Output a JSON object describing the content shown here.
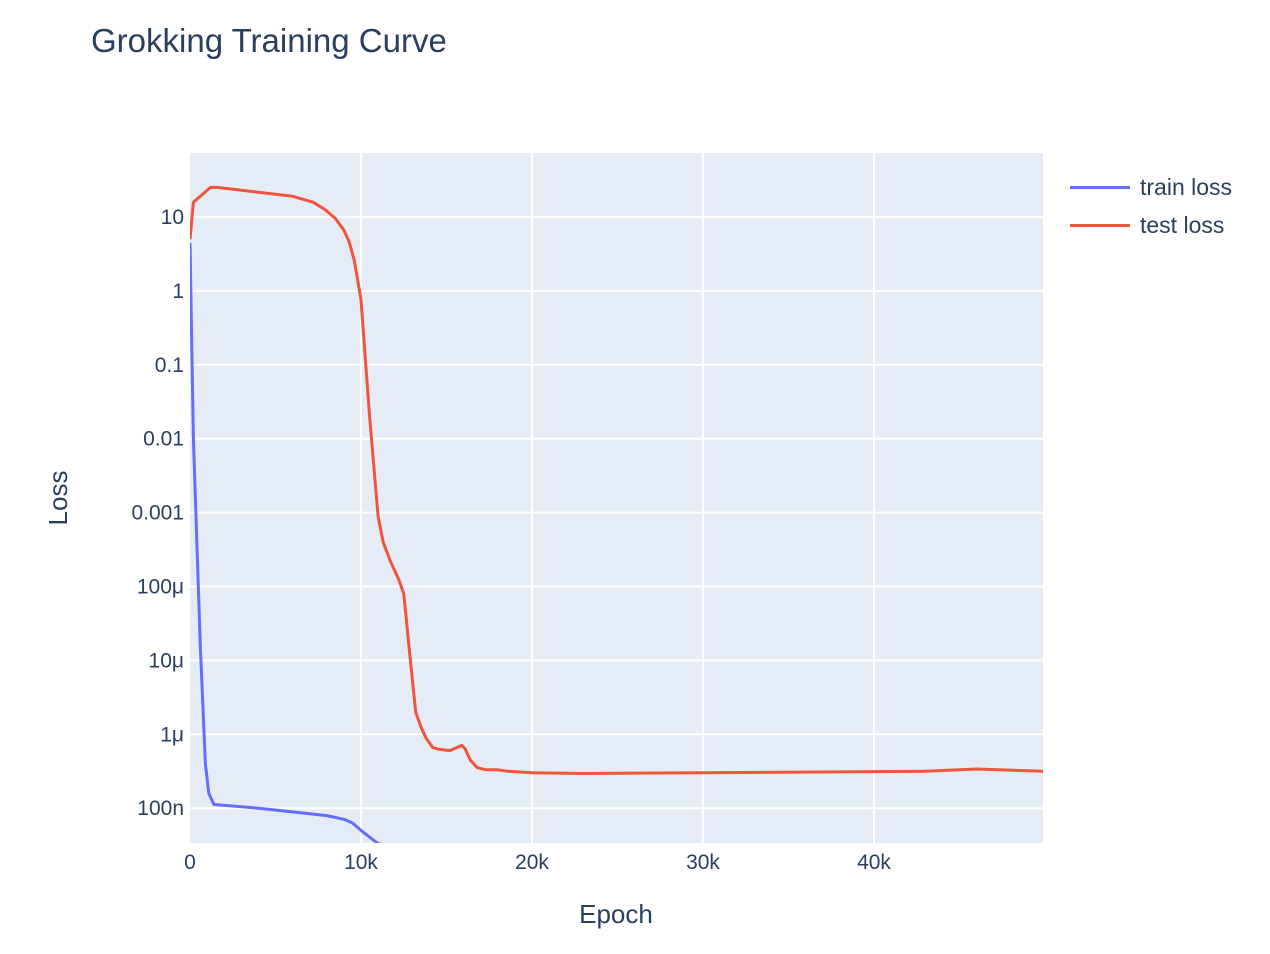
{
  "chart_data": {
    "type": "line",
    "title": "Grokking Training Curve",
    "xlabel": "Epoch",
    "ylabel": "Loss",
    "x_scale": "linear",
    "y_scale": "log",
    "xlim": [
      0,
      49900
    ],
    "ylim_log10": [
      -7.45,
      1.85
    ],
    "x_ticks": [
      {
        "v": 0,
        "label": "0"
      },
      {
        "v": 10000,
        "label": "10k"
      },
      {
        "v": 20000,
        "label": "20k"
      },
      {
        "v": 30000,
        "label": "30k"
      },
      {
        "v": 40000,
        "label": "40k"
      }
    ],
    "y_ticks": [
      {
        "v": 1,
        "label": "10"
      },
      {
        "v": 0,
        "label": "1"
      },
      {
        "v": -1,
        "label": "0.1"
      },
      {
        "v": -2,
        "label": "0.01"
      },
      {
        "v": -3,
        "label": "0.001"
      },
      {
        "v": -4,
        "label": "100μ"
      },
      {
        "v": -5,
        "label": "10μ"
      },
      {
        "v": -6,
        "label": "1μ"
      },
      {
        "v": -7,
        "label": "100n"
      }
    ],
    "grid": true,
    "legend_position": "top-right outside",
    "series": [
      {
        "name": "train loss",
        "color": "#636efa",
        "x": [
          0,
          200,
          600,
          900,
          1100,
          1400,
          4000,
          6000,
          8000,
          9000,
          9500,
          10000,
          11000,
          12000,
          13500,
          15000,
          20000,
          30000,
          40000,
          49900
        ],
        "log10_y": [
          0.65,
          -2.0,
          -4.8,
          -6.4,
          -6.8,
          -6.95,
          -7.0,
          -7.05,
          -7.1,
          -7.15,
          -7.2,
          -7.3,
          -7.48,
          -7.52,
          -7.55,
          -7.58,
          -7.6,
          -7.62,
          -7.64,
          -7.65
        ]
      },
      {
        "name": "test loss",
        "color": "#ef553b",
        "x": [
          0,
          200,
          1200,
          1600,
          6000,
          7200,
          7900,
          8500,
          9000,
          9300,
          9600,
          9800,
          10000,
          10500,
          11000,
          11300,
          11700,
          12200,
          12500,
          12800,
          13200,
          13500,
          13800,
          14200,
          14500,
          15200,
          15900,
          16100,
          16400,
          16800,
          17300,
          18000,
          18600,
          20000,
          23000,
          30000,
          43000,
          46000,
          49900
        ],
        "log10_y": [
          0.7,
          1.2,
          1.4,
          1.4,
          1.28,
          1.2,
          1.1,
          0.98,
          0.82,
          0.67,
          0.42,
          0.15,
          -0.12,
          -1.7,
          -3.05,
          -3.4,
          -3.65,
          -3.9,
          -4.1,
          -4.8,
          -5.7,
          -5.9,
          -6.05,
          -6.18,
          -6.2,
          -6.22,
          -6.15,
          -6.2,
          -6.35,
          -6.45,
          -6.48,
          -6.48,
          -6.5,
          -6.52,
          -6.53,
          -6.52,
          -6.5,
          -6.47,
          -6.5
        ]
      }
    ]
  },
  "page": {
    "title": "Grokking Training Curve"
  },
  "legend": {
    "items": [
      {
        "label": "train loss",
        "color": "#636efa"
      },
      {
        "label": "test loss",
        "color": "#ef553b"
      }
    ]
  },
  "axes": {
    "x_title": "Epoch",
    "y_title": "Loss"
  }
}
